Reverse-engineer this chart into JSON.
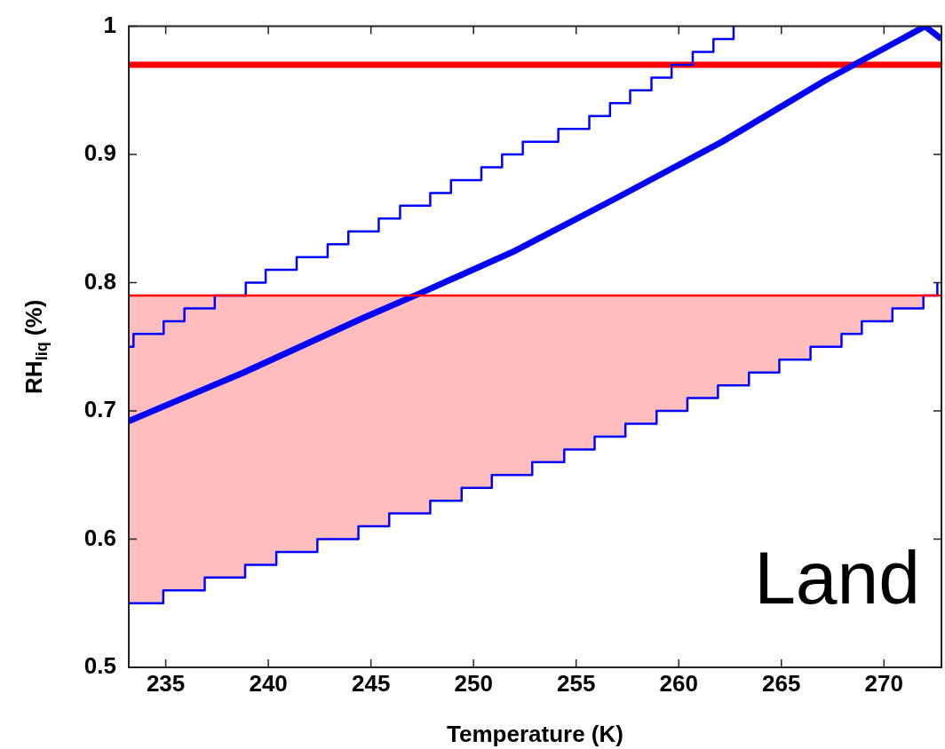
{
  "chart_data": {
    "type": "line",
    "xlabel": "Temperature (K)",
    "ylabel": "RH$_{liq}$ (%)",
    "xlim": [
      233.2,
      272.8
    ],
    "xticks": [
      235,
      240,
      245,
      250,
      255,
      260,
      265,
      270
    ],
    "ylim": [
      0.5,
      1
    ],
    "yticks": [
      0.5,
      0.6,
      0.7,
      0.8,
      0.9,
      1
    ],
    "grid": false,
    "legend": false,
    "marker": "none",
    "series": [
      {
        "type": "step",
        "color": "#0000ff",
        "x": [
          233.2,
          234.88,
          236.9,
          238.87,
          240.39,
          242.39,
          244.39,
          245.89,
          247.89,
          249.42,
          250.89,
          252.86,
          254.42,
          255.9,
          257.4,
          258.92,
          260.42,
          261.91,
          263.42,
          264.9,
          266.42,
          267.93,
          268.92,
          270.41,
          271.92,
          272.6
        ],
        "values": [
          0.55,
          0.56,
          0.57,
          0.58,
          0.59,
          0.6,
          0.61,
          0.62,
          0.63,
          0.64,
          0.65,
          0.66,
          0.67,
          0.68,
          0.69,
          0.7,
          0.71,
          0.72,
          0.73,
          0.74,
          0.75,
          0.76,
          0.77,
          0.78,
          0.79,
          0.8
        ],
        "lower": [
          0.55,
          0.56,
          0.57,
          0.58,
          0.59,
          0.6,
          0.61,
          0.62,
          0.63,
          0.64,
          0.65,
          0.66,
          0.67,
          0.68,
          0.69,
          0.7,
          0.71,
          0.72,
          0.73,
          0.74,
          0.75,
          0.76,
          0.77,
          0.78,
          0.79,
          0.8
        ],
        "upper": [
          0.79,
          0.79,
          0.79,
          0.79,
          0.79,
          0.79,
          0.79,
          0.79,
          0.79,
          0.79,
          0.79,
          0.79,
          0.79,
          0.79,
          0.79,
          0.79,
          0.79,
          0.79,
          0.79,
          0.79,
          0.79,
          0.79,
          0.79,
          0.79,
          0.79,
          0.79
        ]
      },
      {
        "type": "step",
        "color": "#0000ff",
        "x": [
          233.2,
          233.43,
          234.9,
          235.91,
          237.39,
          238.9,
          239.87,
          241.38,
          242.89,
          243.9,
          245.38,
          246.42,
          247.89,
          248.9,
          250.38,
          251.39,
          252.4,
          254.13,
          255.64,
          256.65,
          257.63,
          258.67,
          259.65,
          260.68,
          261.69,
          262.67
        ],
        "values": [
          0.75,
          0.76,
          0.77,
          0.78,
          0.79,
          0.8,
          0.81,
          0.82,
          0.83,
          0.84,
          0.85,
          0.86,
          0.87,
          0.88,
          0.89,
          0.9,
          0.91,
          0.92,
          0.93,
          0.94,
          0.95,
          0.96,
          0.97,
          0.98,
          0.99,
          1
        ]
      },
      {
        "color": "#0000ff",
        "x": [
          233.2,
          238.8,
          244.55,
          247.43,
          252.04,
          257.08,
          262.12,
          267.16,
          272.0,
          272.8
        ],
        "values": [
          0.692,
          0.73,
          0.772,
          0.792,
          0.825,
          0.867,
          0.91,
          0.958,
          1,
          0.99
        ]
      },
      {
        "color": "#ff0000",
        "x": [
          233.2,
          272.8
        ],
        "values": [
          0.97,
          0.97
        ]
      }
    ],
    "ref_lines": [
      {
        "axis": "y",
        "value": 0.79,
        "color": "#ff0000"
      }
    ],
    "annotations": [
      "Land"
    ]
  }
}
